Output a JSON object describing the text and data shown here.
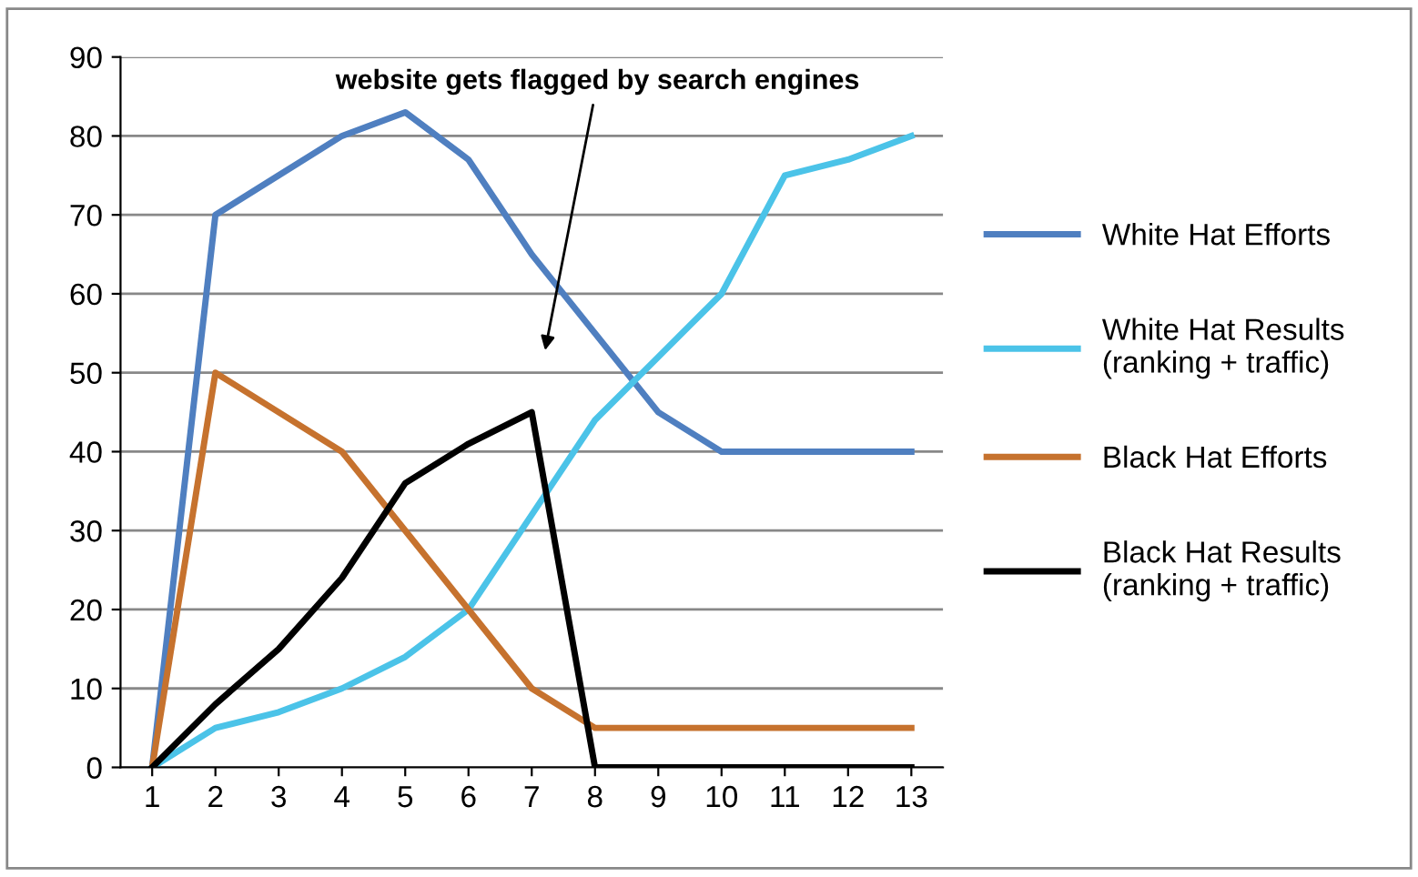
{
  "chart_data": {
    "type": "line",
    "categories": [
      "1",
      "2",
      "3",
      "4",
      "5",
      "6",
      "7",
      "8",
      "9",
      "10",
      "11",
      "12",
      "13"
    ],
    "series": [
      {
        "name": "White Hat Efforts",
        "color": "#4f7fc0",
        "values": [
          0,
          70,
          75,
          80,
          83,
          77,
          65,
          55,
          45,
          40,
          40,
          40,
          40
        ]
      },
      {
        "name": "White Hat Results\n(ranking + traffic)",
        "color": "#4bc3e8",
        "values": [
          0,
          5,
          7,
          10,
          14,
          20,
          32,
          44,
          52,
          60,
          75,
          77,
          80
        ]
      },
      {
        "name": "Black Hat Efforts",
        "color": "#c6722e",
        "values": [
          0,
          50,
          45,
          40,
          30,
          20,
          10,
          5,
          5,
          5,
          5,
          5,
          5
        ]
      },
      {
        "name": "Black Hat Results\n(ranking + traffic)",
        "color": "#000000",
        "values": [
          0,
          8,
          15,
          24,
          36,
          41,
          45,
          0,
          0,
          0,
          0,
          0,
          0
        ]
      }
    ],
    "ylim": [
      0,
      90
    ],
    "yticks": [
      0,
      10,
      20,
      30,
      40,
      50,
      60,
      70,
      80,
      90
    ],
    "grid": "y",
    "legend": "right",
    "marker": "none",
    "line_style": "solid",
    "annotations": [
      "website gets flagged by search engines"
    ]
  }
}
